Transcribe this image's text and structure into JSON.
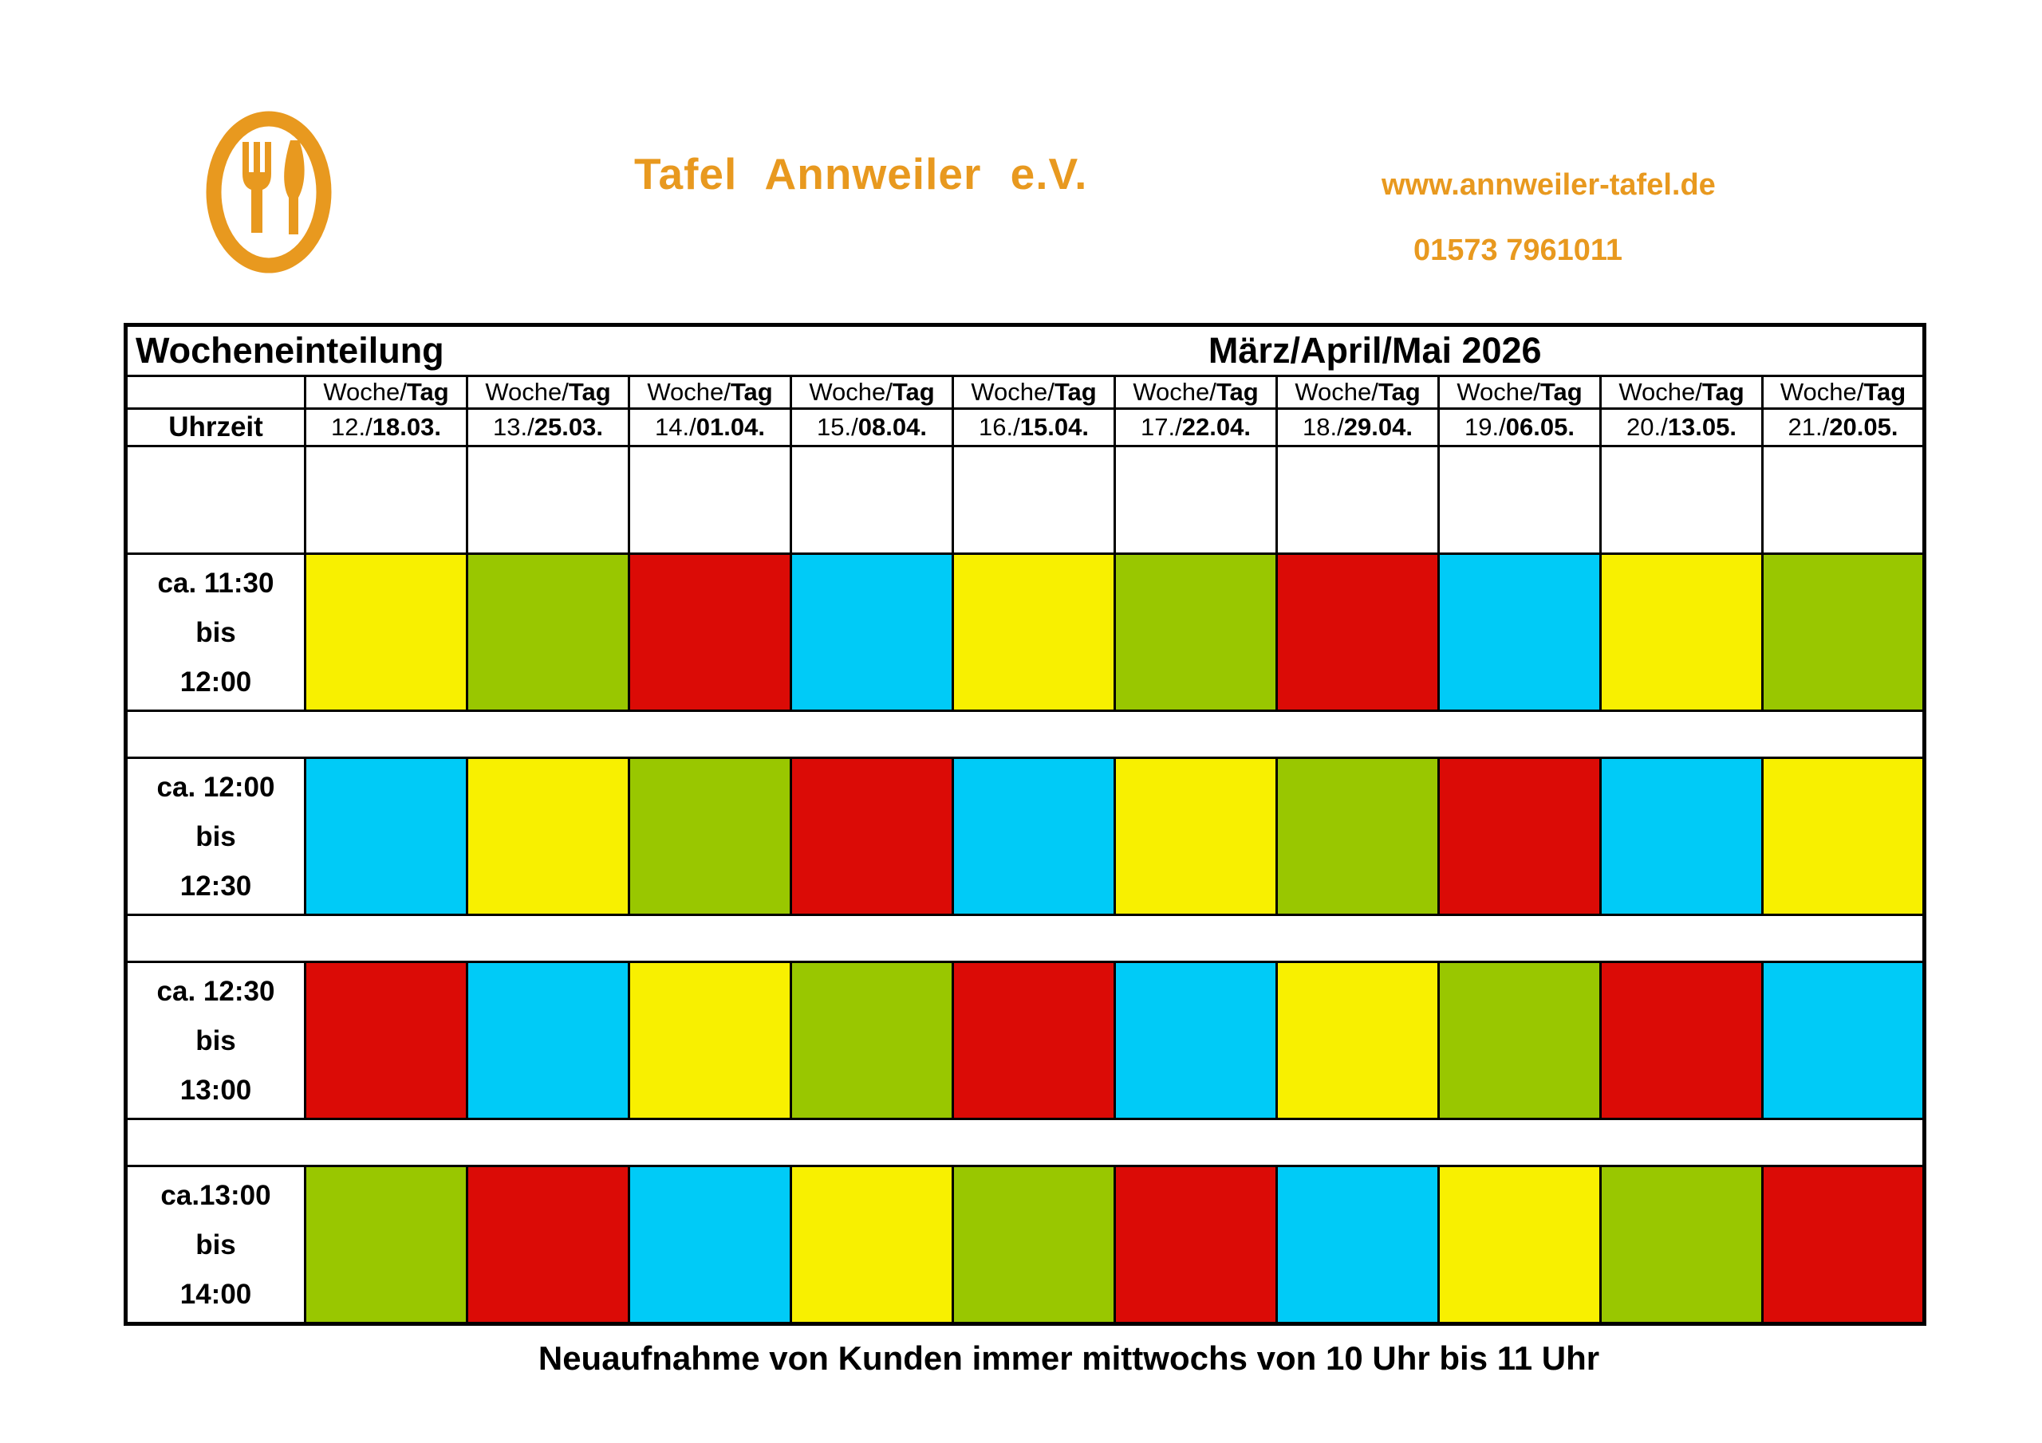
{
  "header": {
    "brand": "Tafel Annweiler e.V.",
    "website": "www.annweiler-tafel.de",
    "phone": "01573 7961011",
    "accent_color": "#E8991F"
  },
  "table": {
    "title_left": "Wocheneinteilung",
    "title_right": "März/April/Mai 2026",
    "col_header": {
      "prefix": "Woche/",
      "bold": "Tag"
    },
    "time_label": "Uhrzeit",
    "weeks": [
      {
        "week": "12./",
        "day": "18.03."
      },
      {
        "week": "13./",
        "day": "25.03."
      },
      {
        "week": "14./",
        "day": "01.04."
      },
      {
        "week": "15./",
        "day": "08.04."
      },
      {
        "week": "16./",
        "day": "15.04."
      },
      {
        "week": "17./",
        "day": "22.04."
      },
      {
        "week": "18./",
        "day": "29.04."
      },
      {
        "week": "19./",
        "day": "06.05."
      },
      {
        "week": "20./",
        "day": "13.05."
      },
      {
        "week": "21./",
        "day": "20.05."
      }
    ],
    "palette": {
      "yellow": "#F8F000",
      "green": "#99C700",
      "red": "#DB0B06",
      "cyan": "#00CBF7"
    },
    "rows": [
      {
        "time": [
          "ca. 11:30",
          "bis",
          "12:00"
        ],
        "colors": [
          "yellow",
          "green",
          "red",
          "cyan",
          "yellow",
          "green",
          "red",
          "cyan",
          "yellow",
          "green"
        ]
      },
      {
        "time": [
          "ca. 12:00",
          "bis",
          "12:30"
        ],
        "colors": [
          "cyan",
          "yellow",
          "green",
          "red",
          "cyan",
          "yellow",
          "green",
          "red",
          "cyan",
          "yellow"
        ]
      },
      {
        "time": [
          "ca. 12:30",
          "bis",
          "13:00"
        ],
        "colors": [
          "red",
          "cyan",
          "yellow",
          "green",
          "red",
          "cyan",
          "yellow",
          "green",
          "red",
          "cyan"
        ]
      },
      {
        "time": [
          "ca.13:00",
          "bis",
          "14:00"
        ],
        "colors": [
          "green",
          "red",
          "cyan",
          "yellow",
          "green",
          "red",
          "cyan",
          "yellow",
          "green",
          "red"
        ]
      }
    ]
  },
  "footer": {
    "note": "Neuaufnahme von Kunden immer mittwochs von 10 Uhr bis 11 Uhr"
  }
}
